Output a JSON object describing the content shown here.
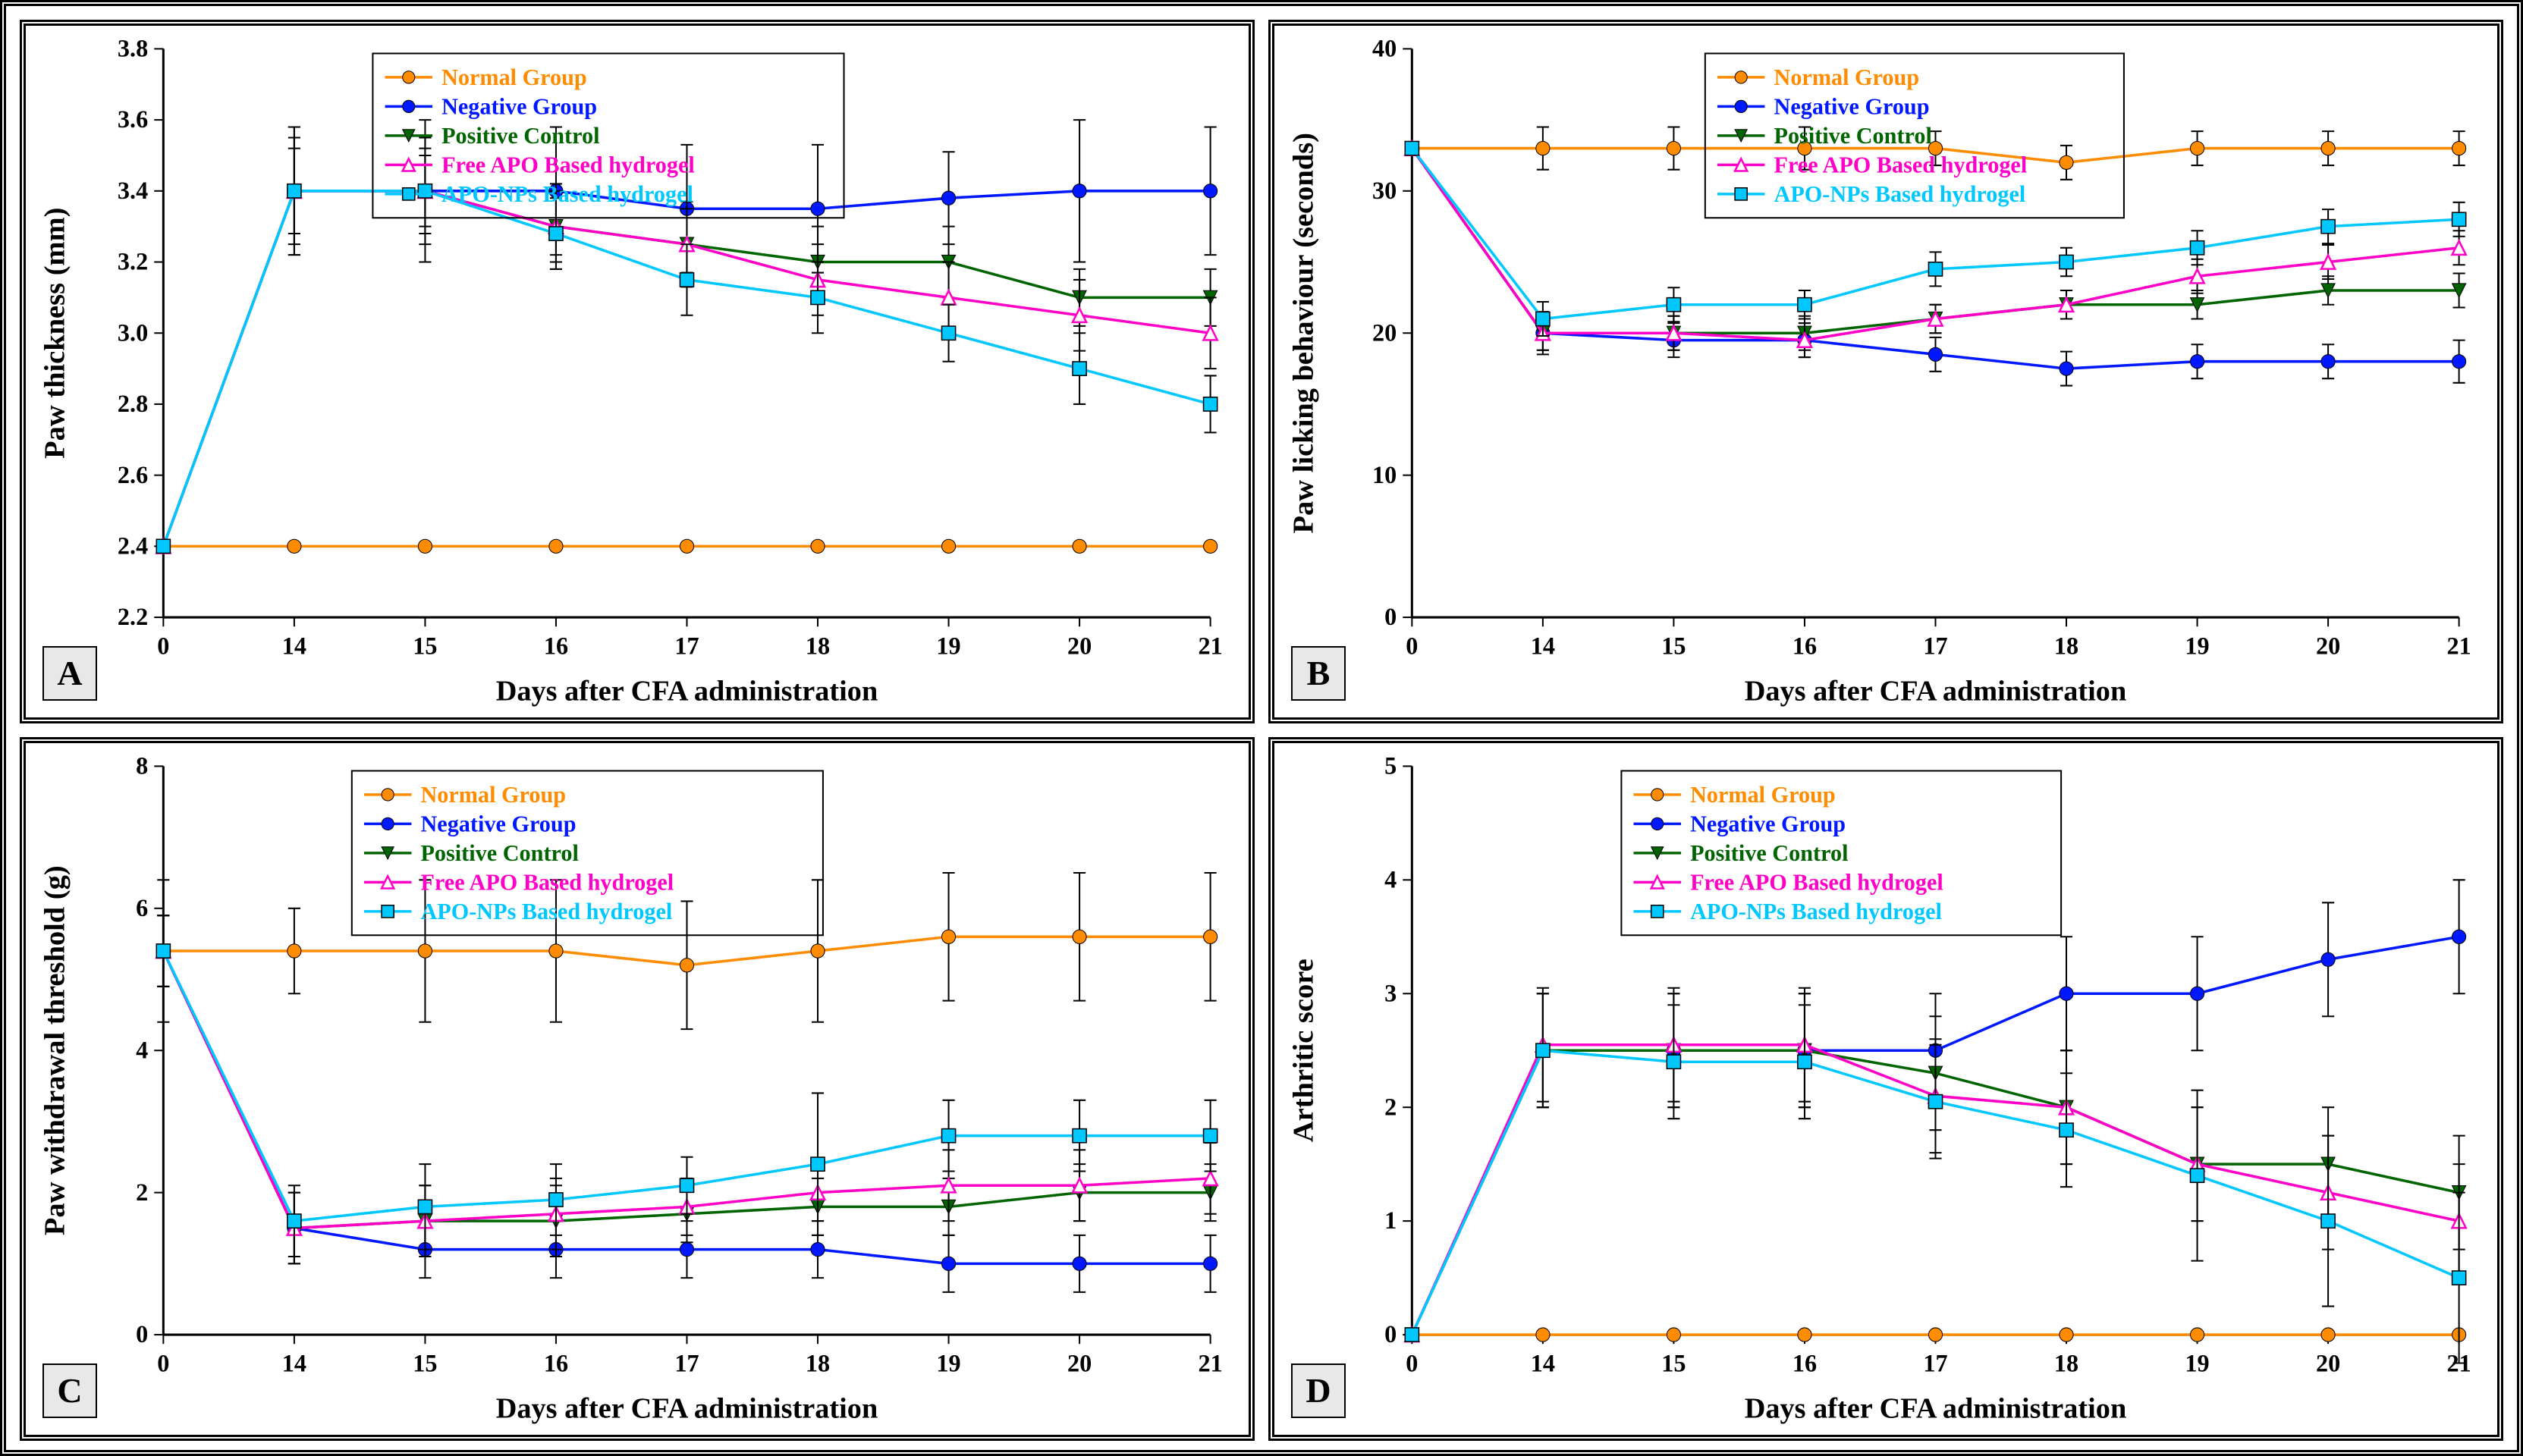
{
  "x_categories": [
    "0",
    "14",
    "15",
    "16",
    "17",
    "18",
    "19",
    "20",
    "21"
  ],
  "x_title": "Days after CFA administration",
  "series_meta": [
    {
      "id": "normal",
      "label": "Normal Group",
      "color": "#ff8c00",
      "label_color": "#ff8c00",
      "marker": "circle",
      "line_width": 3.5
    },
    {
      "id": "negative",
      "label": "Negative Group",
      "color": "#0018ff",
      "label_color": "#0018ff",
      "marker": "circle",
      "line_width": 3.5
    },
    {
      "id": "positive",
      "label": "Positive Control",
      "color": "#006400",
      "label_color": "#006400",
      "marker": "tri-down",
      "line_width": 3.5
    },
    {
      "id": "freeapo",
      "label": "Free APO Based hydrogel",
      "color": "#ff00c8",
      "label_color": "#ff00c8",
      "marker": "tri-open",
      "line_width": 3.5
    },
    {
      "id": "aponps",
      "label": "APO-NPs Based hydrogel",
      "color": "#00c8ff",
      "label_color": "#00c8ff",
      "marker": "square",
      "line_width": 3.5
    }
  ],
  "panels": {
    "A": {
      "letter": "A",
      "y_title": "Paw thickness (mm)",
      "y_min": 2.2,
      "y_max": 3.8,
      "y_step": 0.2,
      "y_decimals": 1,
      "legend": {
        "x": 0.2,
        "w": 0.45
      },
      "data": {
        "normal": {
          "y": [
            2.4,
            2.4,
            2.4,
            2.4,
            2.4,
            2.4,
            2.4,
            2.4,
            2.4
          ],
          "err": [
            0,
            0,
            0,
            0,
            0,
            0,
            0,
            0,
            0
          ]
        },
        "negative": {
          "y": [
            2.4,
            3.4,
            3.4,
            3.4,
            3.35,
            3.35,
            3.38,
            3.4,
            3.4
          ],
          "err": [
            0,
            0.18,
            0.2,
            0.18,
            0.18,
            0.18,
            0.13,
            0.2,
            0.18
          ]
        },
        "positive": {
          "y": [
            2.4,
            3.4,
            3.4,
            3.3,
            3.25,
            3.2,
            3.2,
            3.1,
            3.1
          ],
          "err": [
            0,
            0.12,
            0.1,
            0.1,
            0.1,
            0.1,
            0.1,
            0.08,
            0.08
          ]
        },
        "freeapo": {
          "y": [
            2.4,
            3.4,
            3.4,
            3.3,
            3.25,
            3.15,
            3.1,
            3.05,
            3.0
          ],
          "err": [
            0,
            0.18,
            0.15,
            0.12,
            0.12,
            0.1,
            0.1,
            0.1,
            0.1
          ]
        },
        "aponps": {
          "y": [
            2.4,
            3.4,
            3.4,
            3.28,
            3.15,
            3.1,
            3.0,
            2.9,
            2.8
          ],
          "err": [
            0,
            0.15,
            0.12,
            0.1,
            0.1,
            0.1,
            0.08,
            0.1,
            0.08
          ]
        }
      }
    },
    "B": {
      "letter": "B",
      "y_title": "Paw licking behaviour (seconds)",
      "y_min": 0,
      "y_max": 40,
      "y_step": 10,
      "y_decimals": 0,
      "legend": {
        "x": 0.28,
        "w": 0.4
      },
      "data": {
        "normal": {
          "y": [
            33,
            33,
            33,
            33,
            33,
            32,
            33,
            33,
            33
          ],
          "err": [
            0,
            1.5,
            1.5,
            1.5,
            1.2,
            1.2,
            1.2,
            1.2,
            1.2
          ]
        },
        "negative": {
          "y": [
            33,
            20,
            19.5,
            19.5,
            18.5,
            17.5,
            18,
            18,
            18
          ],
          "err": [
            0,
            1.5,
            1.2,
            1.2,
            1.2,
            1.2,
            1.2,
            1.2,
            1.5
          ]
        },
        "positive": {
          "y": [
            33,
            20,
            20,
            20,
            21,
            22,
            22,
            23,
            23
          ],
          "err": [
            0,
            1.2,
            1.2,
            1.2,
            1.0,
            1.0,
            1.0,
            1.0,
            1.2
          ]
        },
        "freeapo": {
          "y": [
            33,
            20,
            20,
            19.5,
            21,
            22,
            24,
            25,
            26
          ],
          "err": [
            0,
            1.2,
            1.2,
            1.2,
            1.0,
            1.0,
            1.2,
            1.2,
            1.2
          ]
        },
        "aponps": {
          "y": [
            33,
            21,
            22,
            22,
            24.5,
            25,
            26,
            27.5,
            28
          ],
          "err": [
            0,
            1.2,
            1.2,
            1.0,
            1.2,
            1.0,
            1.2,
            1.2,
            1.2
          ]
        }
      }
    },
    "C": {
      "letter": "C",
      "y_title": "Paw withdrawal threshold (g)",
      "y_min": 0,
      "y_max": 8,
      "y_step": 2,
      "y_decimals": 0,
      "legend": {
        "x": 0.18,
        "w": 0.45
      },
      "data": {
        "normal": {
          "y": [
            5.4,
            5.4,
            5.4,
            5.4,
            5.2,
            5.4,
            5.6,
            5.6,
            5.6
          ],
          "err": [
            1.0,
            0.6,
            1.0,
            1.0,
            0.9,
            1.0,
            0.9,
            0.9,
            0.9
          ]
        },
        "negative": {
          "y": [
            5.4,
            1.5,
            1.2,
            1.2,
            1.2,
            1.2,
            1.0,
            1.0,
            1.0
          ],
          "err": [
            0.5,
            0.5,
            0.4,
            0.4,
            0.4,
            0.4,
            0.4,
            0.4,
            0.4
          ]
        },
        "positive": {
          "y": [
            5.4,
            1.5,
            1.6,
            1.6,
            1.7,
            1.8,
            1.8,
            2.0,
            2.0
          ],
          "err": [
            0.5,
            0.5,
            0.5,
            0.5,
            0.4,
            0.4,
            0.4,
            0.4,
            0.4
          ]
        },
        "freeapo": {
          "y": [
            5.4,
            1.5,
            1.6,
            1.7,
            1.8,
            2.0,
            2.1,
            2.1,
            2.2
          ],
          "err": [
            0.5,
            0.5,
            0.5,
            0.5,
            0.4,
            0.4,
            0.5,
            0.5,
            0.5
          ]
        },
        "aponps": {
          "y": [
            5.4,
            1.6,
            1.8,
            1.9,
            2.1,
            2.4,
            2.8,
            2.8,
            2.8
          ],
          "err": [
            0.5,
            0.5,
            0.6,
            0.5,
            0.4,
            1.0,
            0.5,
            0.5,
            0.5
          ]
        }
      }
    },
    "D": {
      "letter": "D",
      "y_title": "Arthritic score",
      "y_min": 0,
      "y_max": 5,
      "y_step": 1,
      "y_decimals": 0,
      "legend": {
        "x": 0.2,
        "w": 0.42
      },
      "data": {
        "normal": {
          "y": [
            0,
            0,
            0,
            0,
            0,
            0,
            0,
            0,
            0
          ],
          "err": [
            0,
            0,
            0,
            0,
            0,
            0,
            0,
            0,
            0
          ]
        },
        "negative": {
          "y": [
            0,
            2.5,
            2.5,
            2.5,
            2.5,
            3.0,
            3.0,
            3.3,
            3.5
          ],
          "err": [
            0,
            0.5,
            0.5,
            0.5,
            0.5,
            0.5,
            0.5,
            0.5,
            0.5
          ]
        },
        "positive": {
          "y": [
            0,
            2.5,
            2.5,
            2.5,
            2.3,
            2.0,
            1.5,
            1.5,
            1.25
          ],
          "err": [
            0,
            0.5,
            0.5,
            0.5,
            0.5,
            0.5,
            0.5,
            0.5,
            0.5
          ]
        },
        "freeapo": {
          "y": [
            0,
            2.55,
            2.55,
            2.55,
            2.1,
            2.0,
            1.5,
            1.25,
            1.0
          ],
          "err": [
            0,
            0.5,
            0.5,
            0.5,
            0.5,
            0.5,
            0.5,
            0.5,
            0.5
          ]
        },
        "aponps": {
          "y": [
            0,
            2.5,
            2.4,
            2.4,
            2.05,
            1.8,
            1.4,
            1.0,
            0.5
          ],
          "err": [
            0,
            0.5,
            0.5,
            0.5,
            0.5,
            0.5,
            0.75,
            0.75,
            0.75
          ]
        }
      }
    }
  }
}
